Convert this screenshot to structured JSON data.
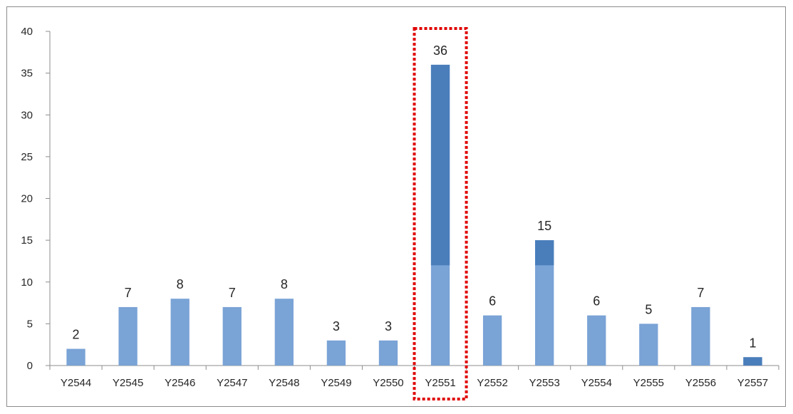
{
  "chart_data": {
    "type": "bar",
    "title": "",
    "xlabel": "",
    "ylabel": "",
    "categories": [
      "Y2544",
      "Y2545",
      "Y2546",
      "Y2547",
      "Y2548",
      "Y2549",
      "Y2550",
      "Y2551",
      "Y2552",
      "Y2553",
      "Y2554",
      "Y2555",
      "Y2556",
      "Y2557"
    ],
    "values": [
      2,
      7,
      8,
      7,
      8,
      3,
      3,
      36,
      6,
      15,
      6,
      5,
      7,
      1
    ],
    "ylim": [
      0,
      40
    ],
    "yticks": [
      0,
      5,
      10,
      15,
      20,
      25,
      30,
      35,
      40
    ],
    "grid": false,
    "legend": "none",
    "highlighted_category": "Y2551",
    "colors": {
      "bar": "#7aa3d6",
      "bar_dark": "#4a7ebb",
      "highlight_box": "#e00000",
      "axis": "#8c8c8c",
      "text": "#262626"
    }
  }
}
